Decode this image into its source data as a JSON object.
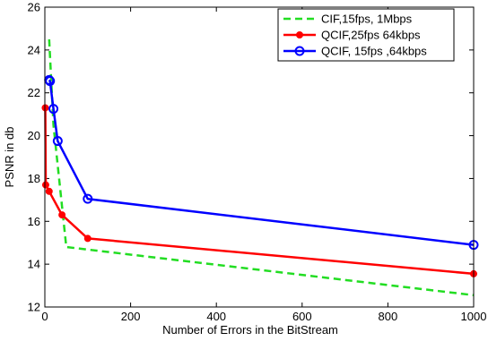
{
  "chart_data": {
    "type": "line",
    "title": "",
    "xlabel": "Number of Errors in the BitStream",
    "ylabel": "PSNR in db",
    "xlim": [
      0,
      1000
    ],
    "ylim": [
      12,
      26
    ],
    "xticks": [
      0,
      200,
      400,
      600,
      800,
      1000
    ],
    "yticks": [
      12,
      14,
      16,
      18,
      20,
      22,
      24,
      26
    ],
    "grid": false,
    "legend_position": "top-right",
    "series": [
      {
        "name": "CIF,15fps, 1Mbps",
        "color": "#22dd22",
        "line_style": "dashed",
        "marker": "none",
        "x": [
          10,
          20,
          50,
          1000
        ],
        "y": [
          24.5,
          20.5,
          14.8,
          12.55
        ]
      },
      {
        "name": "QCIF,25fps 64kbps",
        "color": "#ff0000",
        "line_style": "solid",
        "marker": "filled-circle",
        "x": [
          1,
          2,
          10,
          40,
          100,
          1000
        ],
        "y": [
          21.3,
          17.7,
          17.4,
          16.3,
          15.2,
          13.55
        ]
      },
      {
        "name": "QCIF, 15fps ,64kbps",
        "color": "#0000ff",
        "line_style": "solid",
        "marker": "open-circle",
        "x": [
          10,
          12,
          20,
          30,
          100,
          1000
        ],
        "y": [
          22.6,
          22.55,
          21.25,
          19.75,
          17.05,
          14.9
        ]
      }
    ]
  }
}
